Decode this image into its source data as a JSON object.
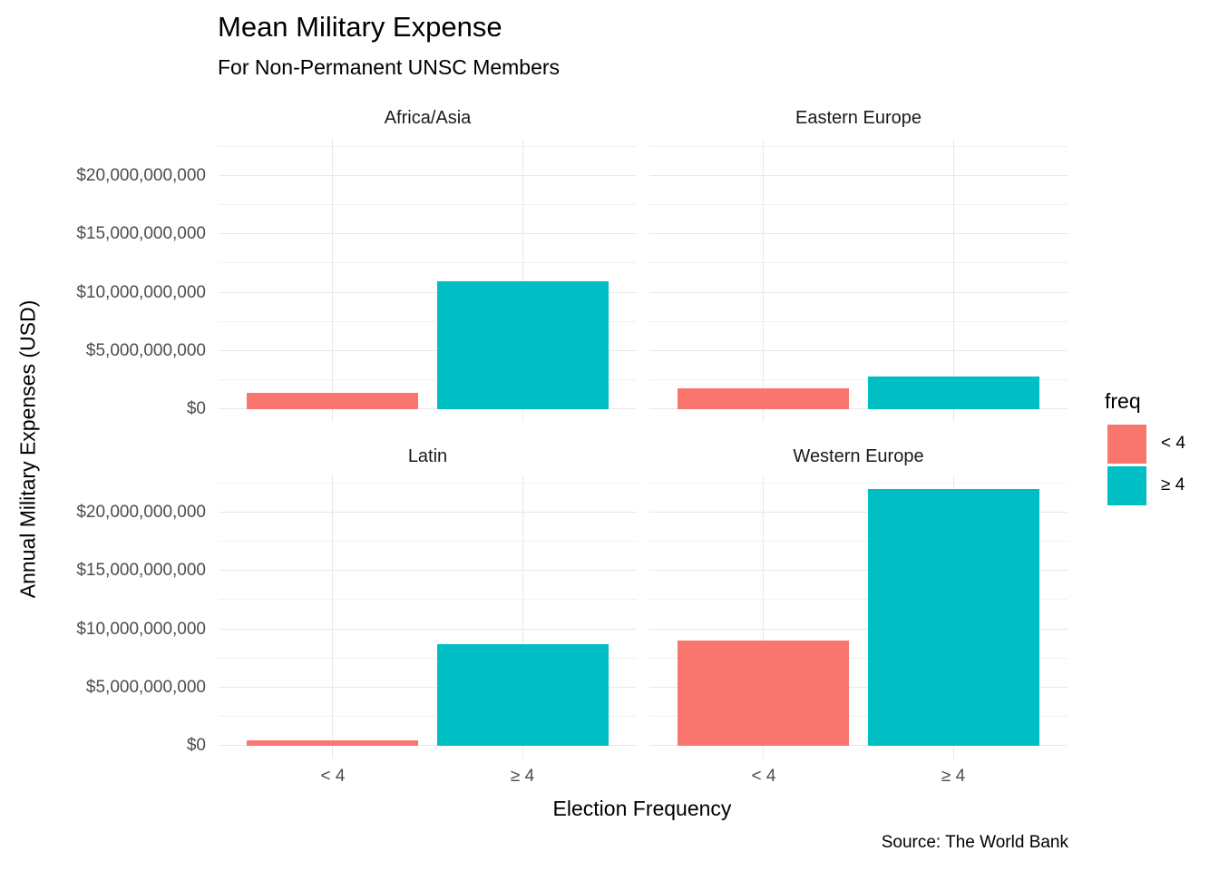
{
  "title": "Mean Military Expense",
  "subtitle": "For Non-Permanent UNSC Members",
  "caption": "Source: The World Bank",
  "axis": {
    "x_title": "Election Frequency",
    "y_title": "Annual Military Expenses (USD)"
  },
  "legend": {
    "title": "freq",
    "items": [
      {
        "label": "< 4",
        "color": "#F8766D"
      },
      {
        "label": "≥ 4",
        "color": "#00BFC4"
      }
    ]
  },
  "theme": {
    "background": "#FFFFFF",
    "grid_major": "#E8E8E8",
    "grid_minor": "#F1F1F1",
    "axis_text": "#4D4D4D",
    "strip_text": "#1A1A1A",
    "bar_lt4": "#F8766D",
    "bar_ge4": "#00BFC4"
  },
  "chart_data": {
    "type": "bar",
    "title": "Mean Military Expense",
    "subtitle": "For Non-Permanent UNSC Members",
    "xlabel": "Election Frequency",
    "ylabel": "Annual Military Expenses (USD)",
    "caption": "Source: The World Bank",
    "categories": [
      "< 4",
      "≥ 4"
    ],
    "colors": {
      "< 4": "#F8766D",
      "≥ 4": "#00BFC4"
    },
    "facets": [
      {
        "name": "Africa/Asia",
        "values": [
          1400000000,
          11000000000
        ]
      },
      {
        "name": "Eastern Europe",
        "values": [
          1800000000,
          2800000000
        ]
      },
      {
        "name": "Latin",
        "values": [
          500000000,
          8700000000
        ]
      },
      {
        "name": "Western Europe",
        "values": [
          9000000000,
          22000000000
        ]
      }
    ],
    "y_ticks": [
      {
        "value": 0,
        "label": "$0"
      },
      {
        "value": 5000000000,
        "label": "$5,000,000,000"
      },
      {
        "value": 10000000000,
        "label": "$10,000,000,000"
      },
      {
        "value": 15000000000,
        "label": "$15,000,000,000"
      },
      {
        "value": 20000000000,
        "label": "$20,000,000,000"
      }
    ],
    "ylim": [
      0,
      23200000000
    ],
    "grid": {
      "horizontal_major": true,
      "horizontal_minor": true,
      "vertical_major": true
    },
    "legend_position": "right",
    "legend_title": "freq"
  }
}
